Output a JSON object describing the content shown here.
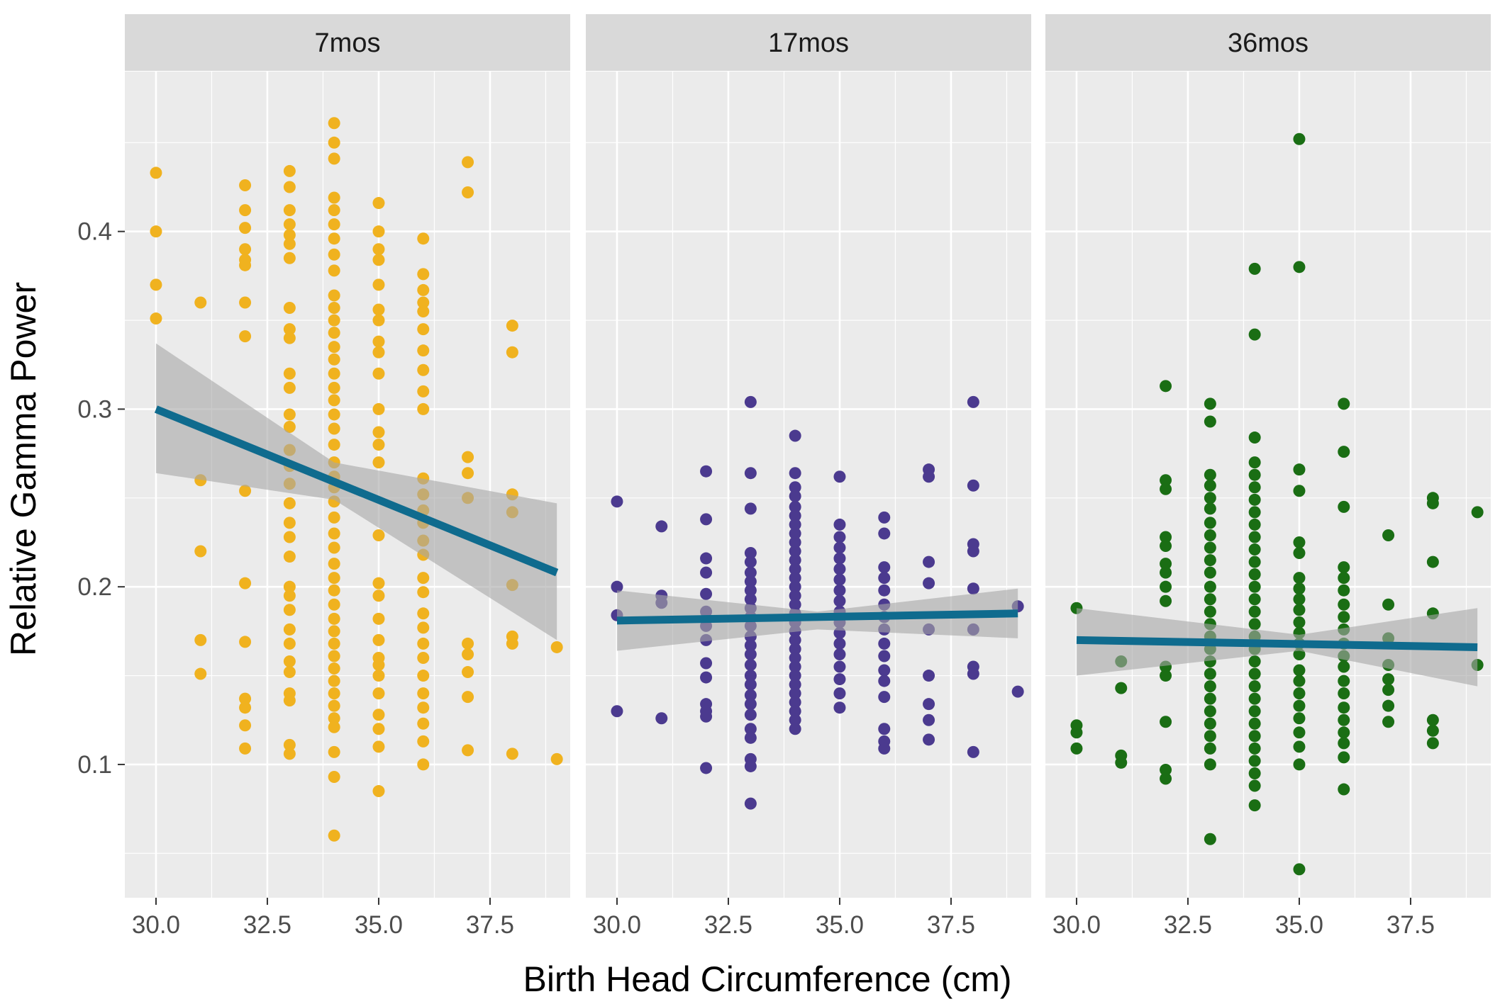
{
  "chart_data": {
    "type": "scatter",
    "xlabel": "Birth Head Circumference (cm)",
    "ylabel": "Relative Gamma Power",
    "xlim": [
      29.3,
      39.3
    ],
    "ylim": [
      0.025,
      0.49
    ],
    "x_ticks": [
      30.0,
      32.5,
      35.0,
      37.5
    ],
    "x_tick_labels": [
      "30.0",
      "32.5",
      "35.0",
      "37.5"
    ],
    "y_ticks": [
      0.1,
      0.2,
      0.3,
      0.4
    ],
    "y_tick_labels": [
      "0.1",
      "0.2",
      "0.3",
      "0.4"
    ],
    "trend_color": "#0f6b8e",
    "ribbon_color": "#a6a6a6",
    "panel_bg": "#ebebeb",
    "strip_bg": "#d9d9d9",
    "grid_color": "#ffffff",
    "panels": [
      {
        "label": "7mos",
        "color": "#f0b21f",
        "trend": {
          "x": [
            30,
            39
          ],
          "y": [
            0.3,
            0.208
          ]
        },
        "ribbon": {
          "x": [
            30,
            34,
            39
          ],
          "upper": [
            0.337,
            0.27,
            0.247
          ],
          "lower": [
            0.264,
            0.249,
            0.17
          ]
        },
        "points": [
          {
            "x": 30,
            "y": [
              0.433,
              0.4,
              0.37,
              0.351
            ]
          },
          {
            "x": 31,
            "y": [
              0.36,
              0.26,
              0.22,
              0.17,
              0.151
            ]
          },
          {
            "x": 32,
            "y": [
              0.426,
              0.412,
              0.402,
              0.39,
              0.384,
              0.381,
              0.36,
              0.341,
              0.254,
              0.202,
              0.169,
              0.137,
              0.132,
              0.122,
              0.109
            ]
          },
          {
            "x": 33,
            "y": [
              0.434,
              0.425,
              0.412,
              0.404,
              0.398,
              0.393,
              0.385,
              0.357,
              0.345,
              0.34,
              0.32,
              0.312,
              0.297,
              0.29,
              0.277,
              0.268,
              0.258,
              0.247,
              0.236,
              0.228,
              0.217,
              0.2,
              0.195,
              0.187,
              0.176,
              0.168,
              0.158,
              0.152,
              0.14,
              0.136,
              0.111,
              0.106
            ]
          },
          {
            "x": 34,
            "y": [
              0.461,
              0.45,
              0.441,
              0.419,
              0.412,
              0.404,
              0.396,
              0.387,
              0.378,
              0.364,
              0.357,
              0.35,
              0.343,
              0.335,
              0.328,
              0.32,
              0.312,
              0.305,
              0.297,
              0.289,
              0.28,
              0.27,
              0.262,
              0.256,
              0.248,
              0.239,
              0.23,
              0.222,
              0.213,
              0.205,
              0.198,
              0.19,
              0.182,
              0.175,
              0.168,
              0.161,
              0.154,
              0.147,
              0.14,
              0.133,
              0.126,
              0.121,
              0.107,
              0.093,
              0.06
            ]
          },
          {
            "x": 35,
            "y": [
              0.416,
              0.4,
              0.39,
              0.384,
              0.37,
              0.356,
              0.35,
              0.338,
              0.332,
              0.32,
              0.3,
              0.287,
              0.28,
              0.27,
              0.229,
              0.202,
              0.195,
              0.182,
              0.17,
              0.16,
              0.156,
              0.15,
              0.14,
              0.128,
              0.12,
              0.11,
              0.085
            ]
          },
          {
            "x": 36,
            "y": [
              0.396,
              0.376,
              0.367,
              0.36,
              0.355,
              0.345,
              0.333,
              0.322,
              0.31,
              0.3,
              0.261,
              0.252,
              0.243,
              0.236,
              0.226,
              0.218,
              0.205,
              0.197,
              0.185,
              0.177,
              0.168,
              0.16,
              0.15,
              0.14,
              0.132,
              0.123,
              0.113,
              0.1
            ]
          },
          {
            "x": 37,
            "y": [
              0.439,
              0.422,
              0.273,
              0.264,
              0.25,
              0.168,
              0.162,
              0.152,
              0.138,
              0.108
            ]
          },
          {
            "x": 38,
            "y": [
              0.347,
              0.332,
              0.252,
              0.242,
              0.201,
              0.172,
              0.168,
              0.106
            ]
          },
          {
            "x": 39,
            "y": [
              0.166,
              0.103
            ]
          }
        ]
      },
      {
        "label": "17mos",
        "color": "#4b3a8f",
        "trend": {
          "x": [
            30,
            39
          ],
          "y": [
            0.181,
            0.185
          ]
        },
        "ribbon": {
          "x": [
            30,
            34.5,
            39
          ],
          "upper": [
            0.198,
            0.186,
            0.199
          ],
          "lower": [
            0.164,
            0.176,
            0.171
          ]
        },
        "points": [
          {
            "x": 30,
            "y": [
              0.248,
              0.2,
              0.184,
              0.13
            ]
          },
          {
            "x": 31,
            "y": [
              0.234,
              0.195,
              0.191,
              0.126
            ]
          },
          {
            "x": 32,
            "y": [
              0.265,
              0.238,
              0.216,
              0.208,
              0.196,
              0.186,
              0.178,
              0.17,
              0.157,
              0.149,
              0.134,
              0.13,
              0.127,
              0.098
            ]
          },
          {
            "x": 33,
            "y": [
              0.304,
              0.264,
              0.244,
              0.219,
              0.214,
              0.208,
              0.203,
              0.198,
              0.193,
              0.188,
              0.183,
              0.178,
              0.172,
              0.167,
              0.162,
              0.156,
              0.15,
              0.145,
              0.139,
              0.134,
              0.128,
              0.12,
              0.115,
              0.103,
              0.099,
              0.078
            ]
          },
          {
            "x": 34,
            "y": [
              0.285,
              0.264,
              0.256,
              0.251,
              0.245,
              0.24,
              0.235,
              0.23,
              0.225,
              0.22,
              0.215,
              0.21,
              0.205,
              0.2,
              0.195,
              0.19,
              0.185,
              0.18,
              0.175,
              0.17,
              0.165,
              0.16,
              0.155,
              0.15,
              0.145,
              0.14,
              0.135,
              0.13,
              0.125,
              0.12
            ]
          },
          {
            "x": 35,
            "y": [
              0.262,
              0.235,
              0.228,
              0.222,
              0.216,
              0.21,
              0.204,
              0.198,
              0.192,
              0.186,
              0.18,
              0.174,
              0.168,
              0.162,
              0.155,
              0.148,
              0.14,
              0.132
            ]
          },
          {
            "x": 36,
            "y": [
              0.239,
              0.23,
              0.211,
              0.205,
              0.198,
              0.19,
              0.183,
              0.176,
              0.168,
              0.161,
              0.153,
              0.147,
              0.138,
              0.12,
              0.113,
              0.109
            ]
          },
          {
            "x": 37,
            "y": [
              0.266,
              0.262,
              0.214,
              0.202,
              0.176,
              0.15,
              0.134,
              0.125,
              0.114
            ]
          },
          {
            "x": 38,
            "y": [
              0.304,
              0.257,
              0.224,
              0.22,
              0.199,
              0.176,
              0.155,
              0.151,
              0.107
            ]
          },
          {
            "x": 39,
            "y": [
              0.189,
              0.141
            ]
          }
        ]
      },
      {
        "label": "36mos",
        "color": "#1a6e14",
        "trend": {
          "x": [
            30,
            39
          ],
          "y": [
            0.17,
            0.166
          ]
        },
        "ribbon": {
          "x": [
            30,
            35,
            39
          ],
          "upper": [
            0.188,
            0.173,
            0.188
          ],
          "lower": [
            0.15,
            0.164,
            0.144
          ]
        },
        "points": [
          {
            "x": 30,
            "y": [
              0.188,
              0.122,
              0.118,
              0.109
            ]
          },
          {
            "x": 31,
            "y": [
              0.158,
              0.143,
              0.105,
              0.101
            ]
          },
          {
            "x": 32,
            "y": [
              0.313,
              0.26,
              0.255,
              0.228,
              0.223,
              0.213,
              0.208,
              0.2,
              0.192,
              0.155,
              0.15,
              0.124,
              0.097,
              0.092
            ]
          },
          {
            "x": 33,
            "y": [
              0.303,
              0.293,
              0.263,
              0.257,
              0.25,
              0.244,
              0.236,
              0.229,
              0.222,
              0.215,
              0.208,
              0.2,
              0.193,
              0.186,
              0.179,
              0.172,
              0.165,
              0.158,
              0.151,
              0.144,
              0.137,
              0.13,
              0.123,
              0.116,
              0.109,
              0.1,
              0.058
            ]
          },
          {
            "x": 34,
            "y": [
              0.379,
              0.342,
              0.284,
              0.27,
              0.263,
              0.256,
              0.249,
              0.242,
              0.235,
              0.228,
              0.221,
              0.214,
              0.207,
              0.2,
              0.193,
              0.186,
              0.179,
              0.172,
              0.165,
              0.158,
              0.151,
              0.144,
              0.137,
              0.13,
              0.123,
              0.116,
              0.109,
              0.102,
              0.095,
              0.088,
              0.077
            ]
          },
          {
            "x": 35,
            "y": [
              0.452,
              0.38,
              0.266,
              0.254,
              0.225,
              0.219,
              0.205,
              0.199,
              0.193,
              0.187,
              0.18,
              0.174,
              0.168,
              0.162,
              0.153,
              0.147,
              0.14,
              0.133,
              0.126,
              0.118,
              0.11,
              0.1,
              0.041
            ]
          },
          {
            "x": 36,
            "y": [
              0.303,
              0.276,
              0.245,
              0.211,
              0.205,
              0.198,
              0.19,
              0.183,
              0.176,
              0.168,
              0.161,
              0.155,
              0.147,
              0.14,
              0.132,
              0.125,
              0.118,
              0.112,
              0.104,
              0.086
            ]
          },
          {
            "x": 37,
            "y": [
              0.229,
              0.19,
              0.171,
              0.156,
              0.148,
              0.142,
              0.133,
              0.124
            ]
          },
          {
            "x": 38,
            "y": [
              0.25,
              0.247,
              0.214,
              0.185,
              0.125,
              0.119,
              0.112
            ]
          },
          {
            "x": 39,
            "y": [
              0.242,
              0.156
            ]
          }
        ]
      }
    ]
  }
}
